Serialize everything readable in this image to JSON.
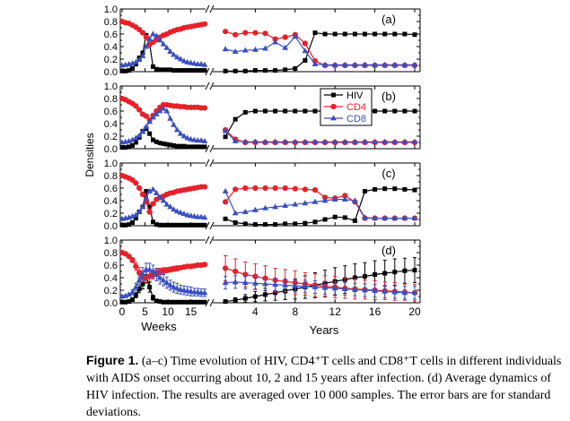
{
  "caption": {
    "label": "Figure 1.",
    "text": " (a–c) Time evolution of HIV, CD4⁺T cells and CD8⁺T cells in different individuals with AIDS onset occurring about 10, 2 and 15 years after infection. (d) Average dynamics of HIV infection. The results are averaged over 10 000 samples. The error bars are for standard deviations."
  },
  "chart_data": {
    "type": "line",
    "ylabel": "Densities",
    "xlabel_weeks": "Weeks",
    "xlabel_years": "Years",
    "ylim": [
      0,
      1
    ],
    "yticks": [
      "0.0",
      "0.2",
      "0.4",
      "0.6",
      "0.8",
      "1.0"
    ],
    "weeks_range": [
      0,
      18
    ],
    "years_range": [
      0,
      20
    ],
    "weeks_ticks": [
      "0",
      "5",
      "10",
      "15"
    ],
    "years_ticks": [
      "4",
      "8",
      "12",
      "16",
      "20"
    ],
    "colors": {
      "HIV": "#000000",
      "CD4": "#e8202a",
      "CD8": "#3a4fbf"
    },
    "legend": {
      "placement": "top-right of panel (b)",
      "entries": [
        "HIV",
        "CD4",
        "CD8"
      ]
    },
    "weeks_x": [
      0,
      0.75,
      1.5,
      2.25,
      3,
      3.75,
      4.5,
      5.25,
      6,
      6.75,
      7.5,
      8.25,
      9,
      9.75,
      10.5,
      11.25,
      12,
      12.75,
      13.5,
      14.25,
      15,
      15.75,
      16.5,
      17.25,
      18
    ],
    "years_x": [
      1,
      2,
      3,
      4,
      5,
      6,
      7,
      8,
      9,
      10,
      11,
      12,
      13,
      14,
      15,
      16,
      17,
      18,
      19,
      20
    ],
    "panels": [
      {
        "label": "(a)",
        "weeks": {
          "HIV": [
            0.01,
            0.01,
            0.02,
            0.05,
            0.12,
            0.22,
            0.3,
            0.58,
            0.44,
            0.08,
            0.04,
            0.03,
            0.03,
            0.03,
            0.03,
            0.02,
            0.02,
            0.02,
            0.02,
            0.02,
            0.02,
            0.02,
            0.02,
            0.02,
            0.02
          ],
          "CD4": [
            0.8,
            0.78,
            0.77,
            0.74,
            0.71,
            0.67,
            0.62,
            0.55,
            0.43,
            0.47,
            0.51,
            0.55,
            0.58,
            0.6,
            0.63,
            0.65,
            0.67,
            0.68,
            0.7,
            0.71,
            0.72,
            0.73,
            0.74,
            0.75,
            0.76
          ],
          "CD8": [
            0.1,
            0.11,
            0.12,
            0.13,
            0.15,
            0.19,
            0.25,
            0.4,
            0.52,
            0.6,
            0.57,
            0.5,
            0.44,
            0.38,
            0.32,
            0.27,
            0.23,
            0.2,
            0.17,
            0.15,
            0.14,
            0.13,
            0.12,
            0.12,
            0.11
          ]
        },
        "years": {
          "HIV": [
            0.01,
            0.01,
            0.01,
            0.02,
            0.02,
            0.02,
            0.03,
            0.05,
            0.18,
            0.62,
            0.6,
            0.6,
            0.6,
            0.6,
            0.6,
            0.6,
            0.6,
            0.6,
            0.6,
            0.59
          ],
          "CD4": [
            0.64,
            0.59,
            0.62,
            0.62,
            0.61,
            0.52,
            0.55,
            0.59,
            0.45,
            0.17,
            0.1,
            0.1,
            0.1,
            0.1,
            0.1,
            0.1,
            0.1,
            0.1,
            0.1,
            0.1
          ],
          "CD8": [
            0.36,
            0.32,
            0.34,
            0.35,
            0.37,
            0.47,
            0.38,
            0.56,
            0.33,
            0.12,
            0.11,
            0.11,
            0.11,
            0.11,
            0.11,
            0.11,
            0.11,
            0.11,
            0.11,
            0.11
          ]
        }
      },
      {
        "label": "(b)",
        "weeks": {
          "HIV": [
            0.02,
            0.02,
            0.03,
            0.05,
            0.1,
            0.18,
            0.28,
            0.32,
            0.24,
            0.14,
            0.11,
            0.09,
            0.08,
            0.07,
            0.06,
            0.05,
            0.04,
            0.04,
            0.04,
            0.03,
            0.03,
            0.03,
            0.03,
            0.03,
            0.03
          ],
          "CD4": [
            0.8,
            0.78,
            0.75,
            0.72,
            0.68,
            0.62,
            0.55,
            0.52,
            0.46,
            0.53,
            0.6,
            0.66,
            0.7,
            0.7,
            0.69,
            0.68,
            0.68,
            0.67,
            0.67,
            0.66,
            0.66,
            0.66,
            0.66,
            0.65,
            0.65
          ],
          "CD8": [
            0.1,
            0.11,
            0.12,
            0.14,
            0.17,
            0.21,
            0.27,
            0.35,
            0.43,
            0.5,
            0.55,
            0.6,
            0.64,
            0.6,
            0.48,
            0.38,
            0.3,
            0.24,
            0.2,
            0.17,
            0.15,
            0.14,
            0.13,
            0.13,
            0.12
          ]
        },
        "years": {
          "HIV": [
            0.19,
            0.47,
            0.58,
            0.6,
            0.6,
            0.6,
            0.6,
            0.6,
            0.6,
            0.6,
            0.6,
            0.6,
            0.6,
            0.6,
            0.6,
            0.6,
            0.6,
            0.6,
            0.6,
            0.6
          ],
          "CD4": [
            0.3,
            0.15,
            0.1,
            0.1,
            0.1,
            0.1,
            0.1,
            0.1,
            0.1,
            0.1,
            0.1,
            0.1,
            0.1,
            0.1,
            0.1,
            0.1,
            0.1,
            0.1,
            0.1,
            0.1
          ],
          "CD8": [
            0.28,
            0.12,
            0.11,
            0.11,
            0.11,
            0.11,
            0.11,
            0.11,
            0.11,
            0.11,
            0.11,
            0.11,
            0.11,
            0.11,
            0.11,
            0.11,
            0.11,
            0.11,
            0.11,
            0.11
          ]
        }
      },
      {
        "label": "(c)",
        "weeks": {
          "HIV": [
            0.01,
            0.01,
            0.02,
            0.05,
            0.12,
            0.22,
            0.3,
            0.55,
            0.3,
            0.06,
            0.02,
            0.01,
            0.01,
            0.01,
            0.01,
            0.01,
            0.01,
            0.01,
            0.01,
            0.01,
            0.01,
            0.01,
            0.01,
            0.01,
            0.01
          ],
          "CD4": [
            0.8,
            0.78,
            0.76,
            0.73,
            0.68,
            0.6,
            0.5,
            0.38,
            0.22,
            0.35,
            0.42,
            0.45,
            0.47,
            0.5,
            0.52,
            0.53,
            0.55,
            0.56,
            0.57,
            0.58,
            0.59,
            0.6,
            0.61,
            0.62,
            0.62
          ],
          "CD8": [
            0.11,
            0.12,
            0.13,
            0.15,
            0.17,
            0.22,
            0.3,
            0.44,
            0.55,
            0.58,
            0.52,
            0.45,
            0.4,
            0.34,
            0.3,
            0.26,
            0.23,
            0.21,
            0.19,
            0.17,
            0.16,
            0.15,
            0.14,
            0.14,
            0.13
          ]
        },
        "years": {
          "HIV": [
            0.11,
            0.05,
            0.03,
            0.02,
            0.02,
            0.02,
            0.03,
            0.03,
            0.04,
            0.06,
            0.1,
            0.14,
            0.13,
            0.08,
            0.55,
            0.58,
            0.59,
            0.59,
            0.58,
            0.57
          ],
          "CD4": [
            0.38,
            0.58,
            0.6,
            0.6,
            0.6,
            0.6,
            0.6,
            0.59,
            0.58,
            0.57,
            0.45,
            0.44,
            0.48,
            0.38,
            0.12,
            0.12,
            0.12,
            0.12,
            0.12,
            0.12
          ],
          "CD8": [
            0.55,
            0.2,
            0.22,
            0.25,
            0.28,
            0.3,
            0.32,
            0.34,
            0.36,
            0.38,
            0.4,
            0.42,
            0.42,
            0.4,
            0.13,
            0.12,
            0.12,
            0.12,
            0.12,
            0.12
          ]
        }
      },
      {
        "label": "(d)",
        "weeks": {
          "HIV": [
            0.01,
            0.01,
            0.02,
            0.05,
            0.12,
            0.22,
            0.3,
            0.42,
            0.25,
            0.08,
            0.03,
            0.02,
            0.01,
            0.01,
            0.01,
            0.01,
            0.01,
            0.01,
            0.01,
            0.01,
            0.01,
            0.01,
            0.01,
            0.01,
            0.01
          ],
          "CD4": [
            0.8,
            0.78,
            0.74,
            0.68,
            0.58,
            0.48,
            0.42,
            0.4,
            0.42,
            0.45,
            0.48,
            0.5,
            0.51,
            0.52,
            0.53,
            0.54,
            0.55,
            0.56,
            0.57,
            0.58,
            0.58,
            0.59,
            0.6,
            0.6,
            0.61
          ],
          "CD8": [
            0.1,
            0.11,
            0.13,
            0.17,
            0.25,
            0.36,
            0.46,
            0.53,
            0.53,
            0.5,
            0.45,
            0.4,
            0.36,
            0.32,
            0.28,
            0.25,
            0.23,
            0.21,
            0.2,
            0.19,
            0.18,
            0.17,
            0.17,
            0.16,
            0.16
          ]
        },
        "weeks_err": {
          "HIV": [
            0,
            0,
            0.01,
            0.02,
            0.04,
            0.06,
            0.08,
            0.1,
            0.08,
            0.04,
            0.02,
            0.01,
            0.01,
            0.01,
            0.01,
            0.01,
            0.01,
            0.01,
            0.01,
            0.01,
            0.01,
            0.01,
            0.01,
            0.01,
            0.01
          ],
          "CD4": [
            0.01,
            0.01,
            0.02,
            0.04,
            0.06,
            0.08,
            0.09,
            0.09,
            0.08,
            0.07,
            0.06,
            0.05,
            0.05,
            0.04,
            0.04,
            0.04,
            0.04,
            0.03,
            0.03,
            0.03,
            0.03,
            0.03,
            0.03,
            0.03,
            0.03
          ],
          "CD8": [
            0.01,
            0.01,
            0.02,
            0.04,
            0.06,
            0.08,
            0.1,
            0.1,
            0.1,
            0.1,
            0.1,
            0.1,
            0.09,
            0.09,
            0.08,
            0.08,
            0.08,
            0.07,
            0.07,
            0.07,
            0.07,
            0.06,
            0.06,
            0.06,
            0.06
          ]
        },
        "years": {
          "HIV": [
            0.02,
            0.04,
            0.07,
            0.1,
            0.13,
            0.16,
            0.19,
            0.22,
            0.25,
            0.28,
            0.31,
            0.34,
            0.37,
            0.4,
            0.42,
            0.45,
            0.47,
            0.49,
            0.51,
            0.52
          ],
          "CD4": [
            0.55,
            0.5,
            0.45,
            0.42,
            0.39,
            0.36,
            0.34,
            0.32,
            0.3,
            0.28,
            0.26,
            0.25,
            0.23,
            0.22,
            0.21,
            0.2,
            0.19,
            0.18,
            0.17,
            0.16
          ],
          "CD8": [
            0.32,
            0.33,
            0.32,
            0.31,
            0.3,
            0.29,
            0.28,
            0.27,
            0.26,
            0.25,
            0.24,
            0.23,
            0.22,
            0.21,
            0.2,
            0.19,
            0.18,
            0.17,
            0.16,
            0.16
          ]
        },
        "years_err": {
          "HIV": [
            0.02,
            0.04,
            0.06,
            0.08,
            0.1,
            0.12,
            0.14,
            0.16,
            0.18,
            0.2,
            0.21,
            0.22,
            0.22,
            0.22,
            0.22,
            0.22,
            0.21,
            0.21,
            0.2,
            0.2
          ],
          "CD4": [
            0.2,
            0.2,
            0.2,
            0.2,
            0.2,
            0.19,
            0.19,
            0.19,
            0.18,
            0.18,
            0.17,
            0.17,
            0.16,
            0.16,
            0.15,
            0.15,
            0.14,
            0.14,
            0.13,
            0.13
          ],
          "CD8": [
            0.1,
            0.1,
            0.1,
            0.1,
            0.1,
            0.1,
            0.1,
            0.1,
            0.1,
            0.1,
            0.1,
            0.1,
            0.1,
            0.1,
            0.1,
            0.1,
            0.1,
            0.1,
            0.1,
            0.1
          ]
        }
      }
    ]
  }
}
